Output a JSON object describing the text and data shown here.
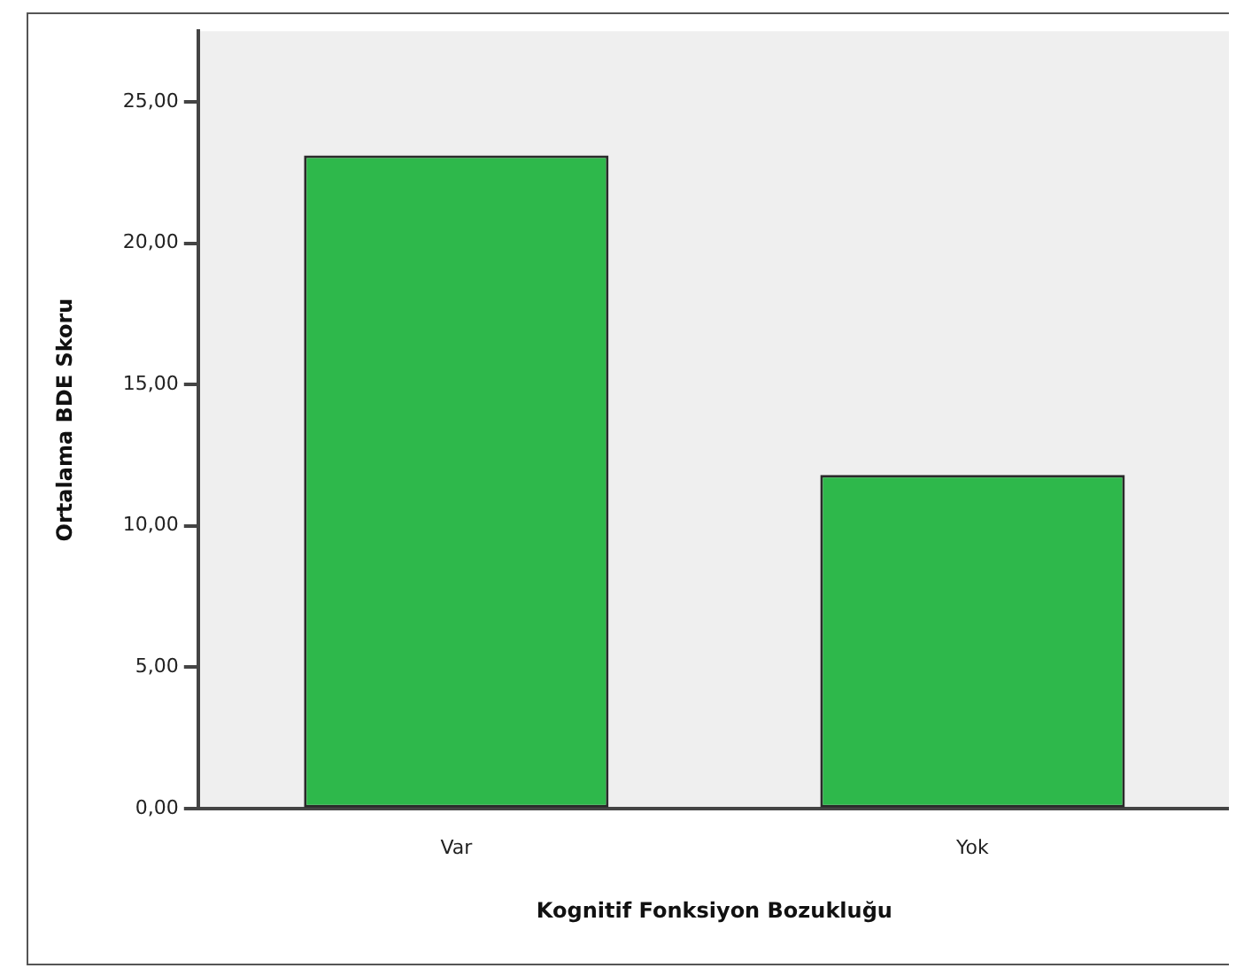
{
  "chart_data": {
    "type": "bar",
    "xlabel": "Kognitif Fonksiyon Bozukluğu",
    "ylabel": "Ortalama BDE Skoru",
    "categories": [
      "Var",
      "Yok"
    ],
    "values": [
      23.1,
      11.8
    ],
    "color": "#2eb84b",
    "ylim": [
      0,
      27.5
    ],
    "yticks": [
      {
        "value": 0,
        "label": "0,00"
      },
      {
        "value": 5,
        "label": "5,00"
      },
      {
        "value": 10,
        "label": "10,00"
      },
      {
        "value": 15,
        "label": "15,00"
      },
      {
        "value": 20,
        "label": "20,00"
      },
      {
        "value": 25,
        "label": "25,00"
      }
    ],
    "grid": false,
    "legend": false
  }
}
